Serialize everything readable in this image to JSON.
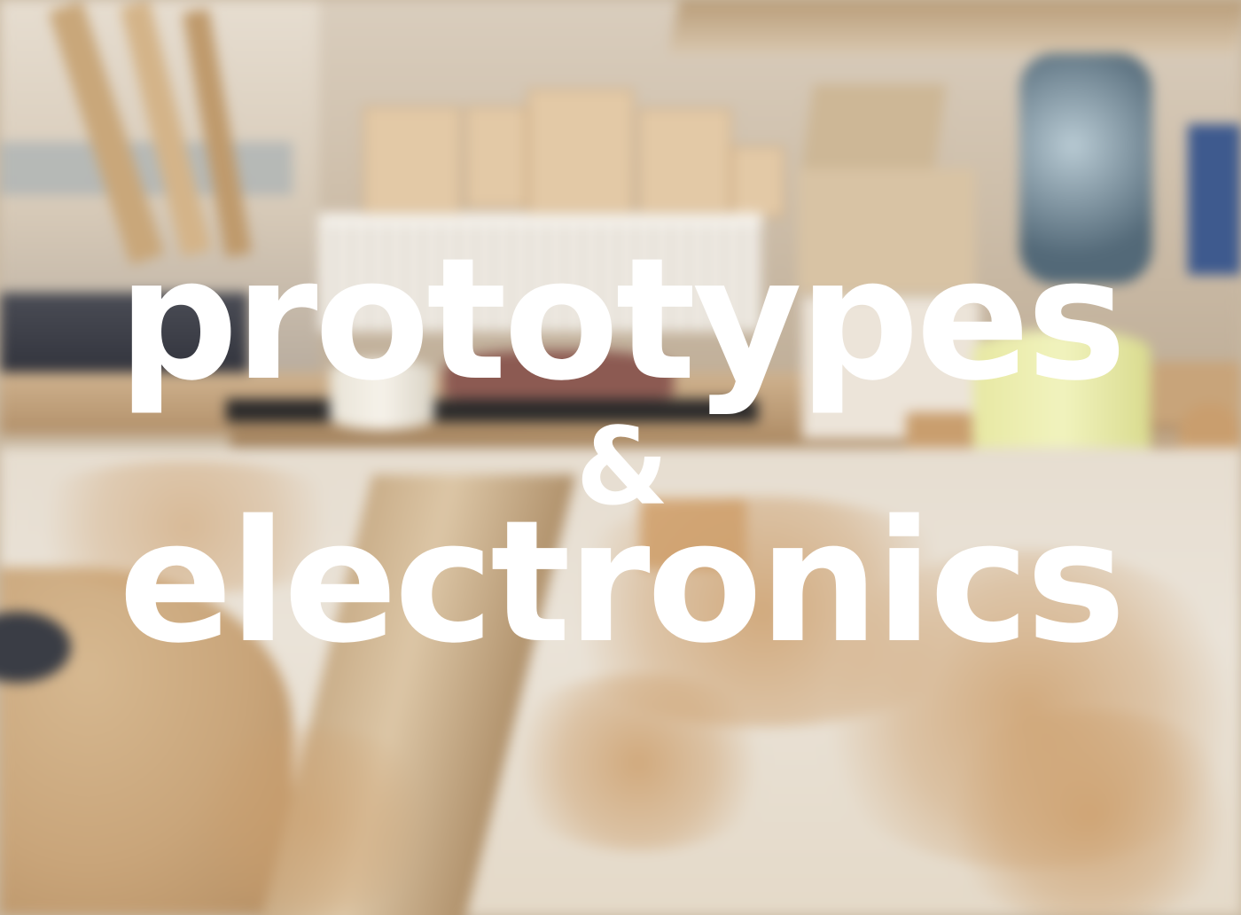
{
  "photo": {
    "subject": "woodworking-workshop",
    "palette": {
      "headline_text": "#ffffff",
      "wood": "#c99e6e",
      "table": "#e6ddd0",
      "tape_yellow": "#f1f3be"
    }
  },
  "headline": {
    "line_1": "prototypes",
    "line_2": "&",
    "line_3": "electronics"
  }
}
